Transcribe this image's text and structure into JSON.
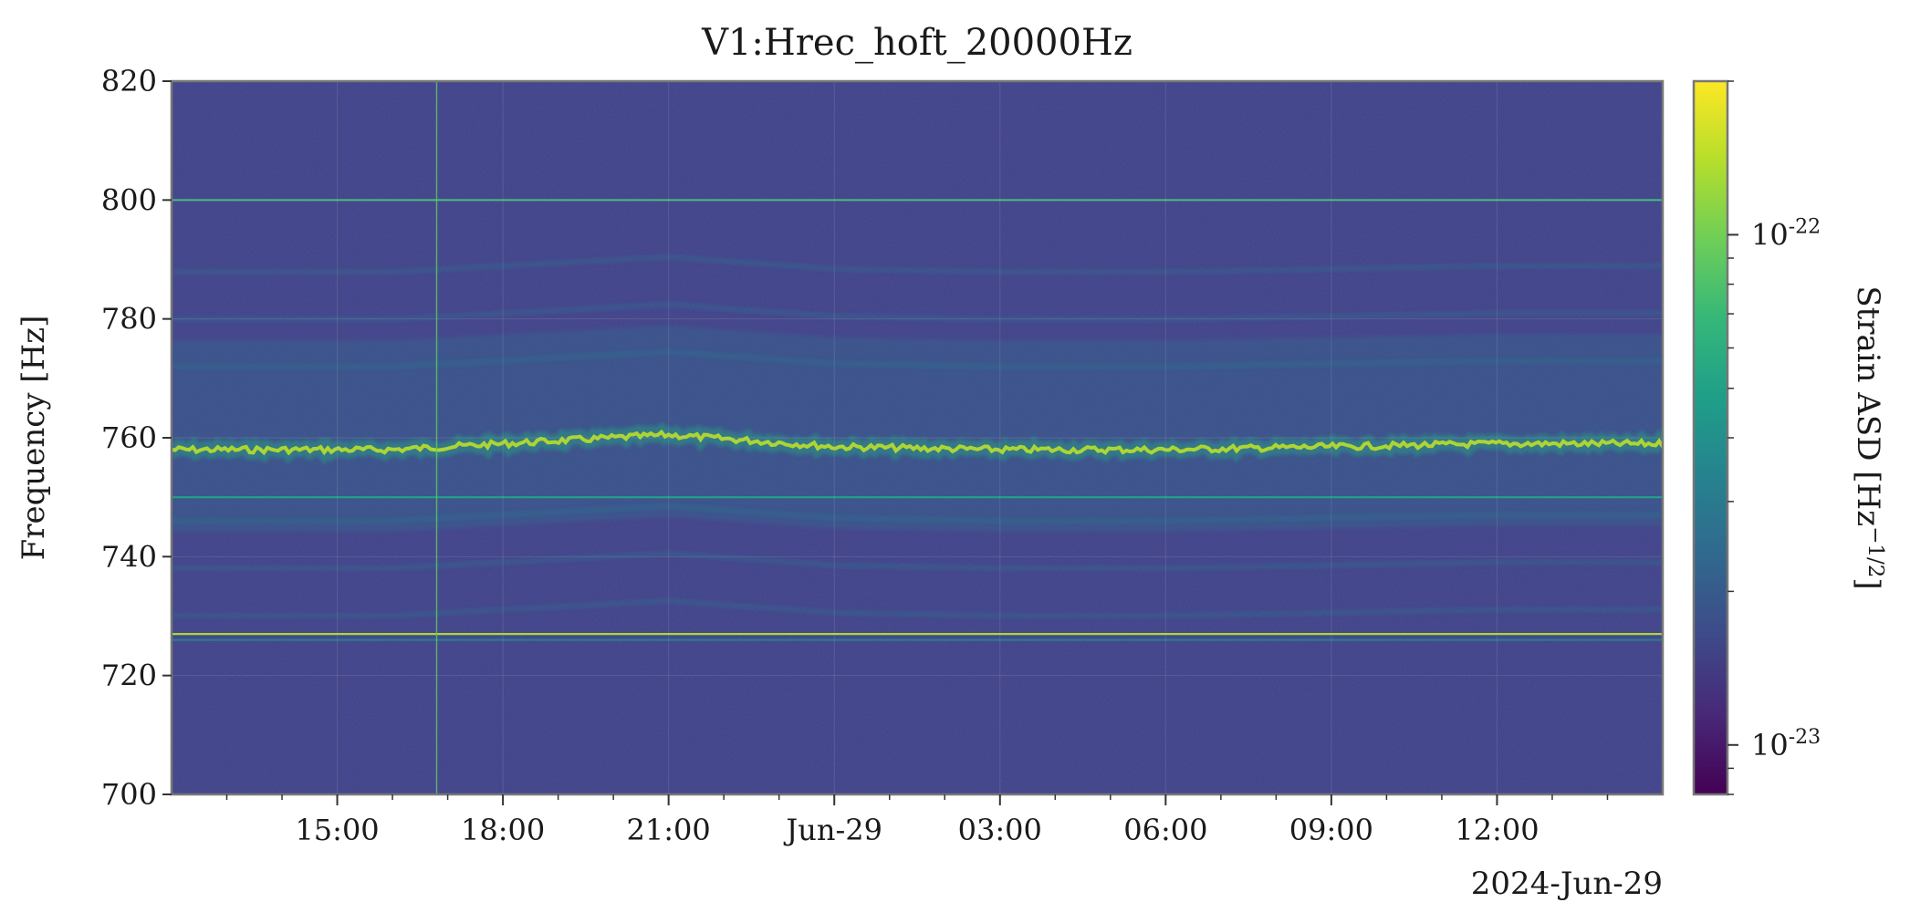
{
  "chart_data": {
    "type": "heatmap",
    "title": "V1:Hrec_hoft_20000Hz",
    "ylabel": "Frequency [Hz]",
    "ylim": [
      700,
      820
    ],
    "y_ticks": [
      700,
      720,
      740,
      760,
      780,
      800,
      820
    ],
    "x_start": "2024-06-28 12:00",
    "x_end": "2024-06-29 15:00",
    "x_ticks": [
      {
        "time": "2024-06-28 15:00",
        "label": "15:00"
      },
      {
        "time": "2024-06-28 18:00",
        "label": "18:00"
      },
      {
        "time": "2024-06-28 21:00",
        "label": "21:00"
      },
      {
        "time": "2024-06-29 00:00",
        "label": "Jun-29"
      },
      {
        "time": "2024-06-29 03:00",
        "label": "03:00"
      },
      {
        "time": "2024-06-29 06:00",
        "label": "06:00"
      },
      {
        "time": "2024-06-29 09:00",
        "label": "09:00"
      },
      {
        "time": "2024-06-29 12:00",
        "label": "12:00"
      }
    ],
    "x_date_label": "2024-Jun-29",
    "colormap": "viridis",
    "colorbar": {
      "label": "Strain ASD [Hz^-1/2]",
      "scale": "log",
      "range": [
        8e-24,
        2e-22
      ],
      "ticks": [
        {
          "value": 1e-23,
          "base": "10",
          "exp": "-23"
        },
        {
          "value": 1e-22,
          "base": "10",
          "exp": "-22"
        }
      ]
    },
    "grid": true,
    "lines": [
      {
        "name": "800 Hz line",
        "freq": 800,
        "asd": 7e-23
      },
      {
        "name": "750 Hz line",
        "freq": 750,
        "asd": 5e-23
      },
      {
        "name": "727 Hz line",
        "freq": 727,
        "asd": 1.3e-22
      },
      {
        "name": "726 Hz line",
        "freq": 726,
        "asd": 3e-23
      }
    ],
    "glitch": {
      "time": "2024-06-28 16:48",
      "asd": 9e-23
    },
    "wandering_line_center_hz": [
      {
        "time": "2024-06-28 12:00",
        "freq": 758
      },
      {
        "time": "2024-06-28 16:00",
        "freq": 758
      },
      {
        "time": "2024-06-28 18:00",
        "freq": 759
      },
      {
        "time": "2024-06-28 21:00",
        "freq": 760.5
      },
      {
        "time": "2024-06-29 00:00",
        "freq": 758.5
      },
      {
        "time": "2024-06-29 03:00",
        "freq": 758
      },
      {
        "time": "2024-06-29 06:00",
        "freq": 758
      },
      {
        "time": "2024-06-29 09:00",
        "freq": 758.5
      },
      {
        "time": "2024-06-29 12:00",
        "freq": 759
      },
      {
        "time": "2024-06-29 15:00",
        "freq": 759
      }
    ],
    "background_asd": 1.5e-23
  },
  "colors": {
    "viridis_stops": [
      "#440154",
      "#482878",
      "#3e4a89",
      "#31688e",
      "#26828e",
      "#1f9e89",
      "#35b779",
      "#6ece58",
      "#b5de2b",
      "#fde725"
    ],
    "background": "#3b3d85",
    "axis": "#777777"
  }
}
